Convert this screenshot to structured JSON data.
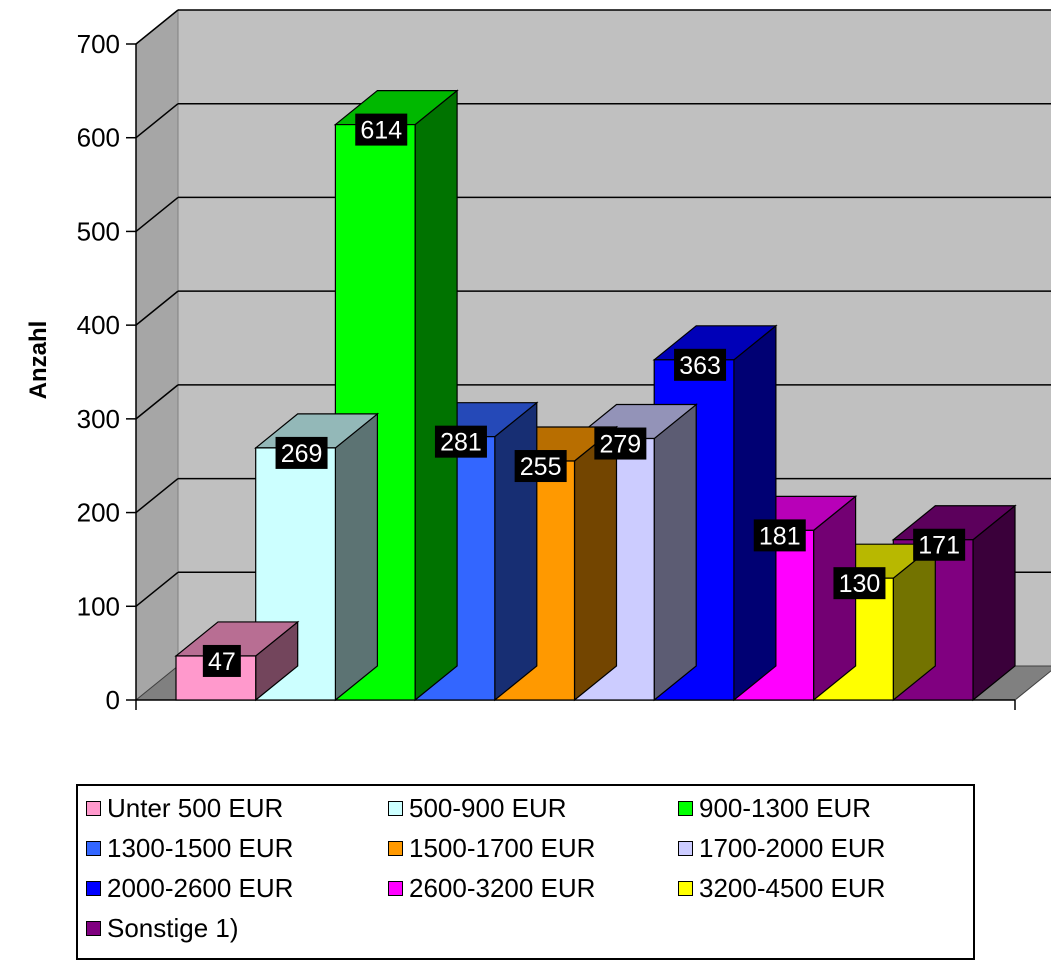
{
  "chart_data": {
    "type": "bar",
    "ylabel": "Anzahl",
    "ylim": [
      0,
      700
    ],
    "yticks": [
      "0",
      "100",
      "200",
      "300",
      "400",
      "500",
      "600",
      "700"
    ],
    "grid": true,
    "legend_position": "bottom",
    "series": [
      {
        "name": "Unter 500 EUR",
        "value": 47,
        "label": "47",
        "color": "#FF99CC"
      },
      {
        "name": "500-900 EUR",
        "value": 269,
        "label": "269",
        "color": "#CCFFFF"
      },
      {
        "name": "900-1300 EUR",
        "value": 614,
        "label": "614",
        "color": "#00FF00"
      },
      {
        "name": "1300-1500 EUR",
        "value": 281,
        "label": "281",
        "color": "#3366FF"
      },
      {
        "name": "1500-1700 EUR",
        "value": 255,
        "label": "255",
        "color": "#FF9900"
      },
      {
        "name": "1700-2000 EUR",
        "value": 279,
        "label": "279",
        "color": "#CCCCFF"
      },
      {
        "name": "2000-2600 EUR",
        "value": 363,
        "label": "363",
        "color": "#0000FF"
      },
      {
        "name": "2600-3200 EUR",
        "value": 181,
        "label": "181",
        "color": "#FF00FF"
      },
      {
        "name": "3200-4500 EUR",
        "value": 130,
        "label": "130",
        "color": "#FFFF00"
      },
      {
        "name": "Sonstige 1)",
        "value": 171,
        "label": "171",
        "color": "#800080"
      }
    ]
  }
}
